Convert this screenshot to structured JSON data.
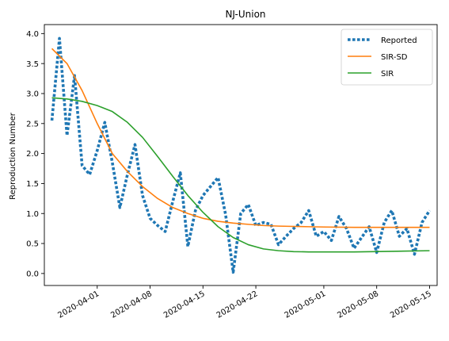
{
  "chart_data": {
    "type": "line",
    "title": "NJ-Union",
    "xlabel": "",
    "ylabel": "Reproduction Number",
    "xlim": [
      "2020-03-25",
      "2020-05-16"
    ],
    "ylim": [
      -0.2,
      4.15
    ],
    "x_ticks": [
      "2020-04-01",
      "2020-04-08",
      "2020-04-15",
      "2020-04-22",
      "2020-05-01",
      "2020-05-08",
      "2020-05-15"
    ],
    "y_ticks": [
      "0.0",
      "0.5",
      "1.0",
      "1.5",
      "2.0",
      "2.5",
      "3.0",
      "3.5",
      "4.0"
    ],
    "grid": false,
    "legend_position": "top-right",
    "series": [
      {
        "name": "Reported",
        "color": "#1f77b4",
        "style": "dotted",
        "x": [
          "2020-03-26",
          "2020-03-27",
          "2020-03-28",
          "2020-03-29",
          "2020-03-30",
          "2020-03-31",
          "2020-04-01",
          "2020-04-02",
          "2020-04-03",
          "2020-04-04",
          "2020-04-05",
          "2020-04-06",
          "2020-04-07",
          "2020-04-08",
          "2020-04-09",
          "2020-04-10",
          "2020-04-11",
          "2020-04-12",
          "2020-04-13",
          "2020-04-14",
          "2020-04-15",
          "2020-04-16",
          "2020-04-17",
          "2020-04-18",
          "2020-04-19",
          "2020-04-20",
          "2020-04-21",
          "2020-04-22",
          "2020-04-23",
          "2020-04-24",
          "2020-04-25",
          "2020-04-26",
          "2020-04-27",
          "2020-04-28",
          "2020-04-29",
          "2020-04-30",
          "2020-05-01",
          "2020-05-02",
          "2020-05-03",
          "2020-05-04",
          "2020-05-05",
          "2020-05-06",
          "2020-05-07",
          "2020-05-08",
          "2020-05-09",
          "2020-05-10",
          "2020-05-11",
          "2020-05-12",
          "2020-05-13",
          "2020-05-14",
          "2020-05-15"
        ],
        "values": [
          2.55,
          3.92,
          2.3,
          3.3,
          1.8,
          1.65,
          2.05,
          2.52,
          1.85,
          1.1,
          1.65,
          2.15,
          1.3,
          0.92,
          0.8,
          0.7,
          1.2,
          1.68,
          0.45,
          1.05,
          1.3,
          1.45,
          1.6,
          0.98,
          0.02,
          1.0,
          1.15,
          0.8,
          0.85,
          0.82,
          0.48,
          0.62,
          0.75,
          0.85,
          1.05,
          0.62,
          0.7,
          0.55,
          0.95,
          0.75,
          0.42,
          0.6,
          0.78,
          0.35,
          0.85,
          1.05,
          0.62,
          0.75,
          0.32,
          0.85,
          1.05
        ]
      },
      {
        "name": "SIR-SD",
        "color": "#ff7f0e",
        "style": "solid",
        "x": [
          "2020-03-26",
          "2020-03-28",
          "2020-03-30",
          "2020-04-01",
          "2020-04-03",
          "2020-04-05",
          "2020-04-07",
          "2020-04-09",
          "2020-04-11",
          "2020-04-13",
          "2020-04-15",
          "2020-04-17",
          "2020-04-19",
          "2020-04-21",
          "2020-04-23",
          "2020-04-25",
          "2020-04-27",
          "2020-04-29",
          "2020-05-01",
          "2020-05-05",
          "2020-05-10",
          "2020-05-15"
        ],
        "values": [
          3.75,
          3.5,
          3.05,
          2.5,
          2.0,
          1.7,
          1.45,
          1.25,
          1.1,
          1.0,
          0.92,
          0.87,
          0.84,
          0.82,
          0.8,
          0.79,
          0.785,
          0.78,
          0.775,
          0.77,
          0.77,
          0.77
        ]
      },
      {
        "name": "SIR",
        "color": "#2ca02c",
        "style": "solid",
        "x": [
          "2020-03-26",
          "2020-03-28",
          "2020-03-30",
          "2020-04-01",
          "2020-04-03",
          "2020-04-05",
          "2020-04-07",
          "2020-04-09",
          "2020-04-11",
          "2020-04-13",
          "2020-04-15",
          "2020-04-17",
          "2020-04-19",
          "2020-04-21",
          "2020-04-23",
          "2020-04-25",
          "2020-04-27",
          "2020-04-29",
          "2020-05-01",
          "2020-05-05",
          "2020-05-10",
          "2020-05-15"
        ],
        "values": [
          2.93,
          2.91,
          2.87,
          2.8,
          2.7,
          2.52,
          2.27,
          1.95,
          1.62,
          1.3,
          1.02,
          0.78,
          0.6,
          0.48,
          0.41,
          0.38,
          0.365,
          0.36,
          0.36,
          0.36,
          0.37,
          0.38
        ]
      }
    ]
  }
}
